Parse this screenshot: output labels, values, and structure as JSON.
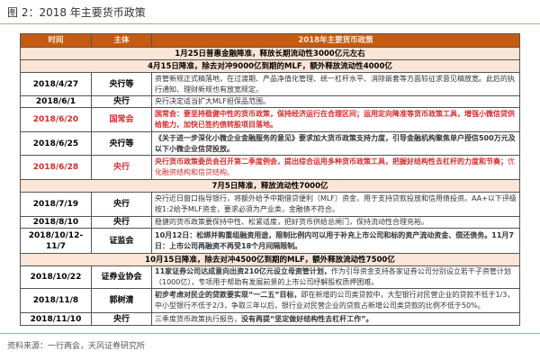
{
  "title": "图 2：2018 年主要货币政策",
  "headers": [
    "时间",
    "主体",
    "2018年主要货币政策"
  ],
  "rows": [
    {
      "span": "1月25日普惠金融降准，释放长期流动性3000亿元左右"
    },
    {
      "span": "4月15日降准，除去对冲9000亿到期的MLF，额外释放流动性4000亿"
    },
    {
      "date": "2018/4/27",
      "subject": "央行等",
      "parts": [
        {
          "t": "资管新规正式稿落地，在过渡期、产品净值化管理、统一杠杆水平、消除嵌套等方面较征求意见稿放宽。此后的执行通知、理财新规也有放宽规定。"
        }
      ],
      "h": 26
    },
    {
      "date": "2018/6/1",
      "subject": "央行",
      "parts": [
        {
          "t": "央行决定适当扩大MLF担保品范围。"
        }
      ],
      "h": 13
    },
    {
      "date": "2018/6/20",
      "subject": "国常会",
      "red": true,
      "parts": [
        {
          "t": "国常会：要坚持稳健中性的货币政策，保持经济运行在合理区间；运用定向降准等货币政策工具，增强小微信贷供给能力，加快已签约债转股项目落地。",
          "b": true
        }
      ],
      "h": 27
    },
    {
      "date": "2018/6/25",
      "subject": "央行等",
      "parts": [
        {
          "t": "《关于进一步深化小微企业金融服务的意见》要求加大货币政策支持力度，引导金融机构聚焦单户授信500万元及以下小微企业信贷投放。",
          "b": true
        }
      ],
      "h": 26
    },
    {
      "date": "2018/6/28",
      "subject": "央行",
      "red": true,
      "parts": [
        {
          "t": "央行货币政策委员会召开第二季度例会，提出综合运用多种货币政策工具，把握好结构性去杠杆的力度和节奏；",
          "b": true
        },
        {
          "t": "优化融资结构和信贷结构。"
        }
      ],
      "h": 27
    },
    {
      "span": "7月5日降准，释放流动性7000亿"
    },
    {
      "date": "2018/7/19",
      "subject": "央行",
      "parts": [
        {
          "t": "央行近日窗口指导银行，将额外给予中期借贷便利（MLF）资金，用于支持贷款投放和信用债投资。AA+以下评级按1:2给予MLF资金，要求必须为产业类，金融债不符合。"
        }
      ],
      "h": 27
    },
    {
      "date": "2018/8/10",
      "subject": "央行",
      "parts": [
        {
          "t": "稳健的货币政策要保持中性、松紧适度，把好货币供给总闸门，保持流动性合理充裕。"
        }
      ],
      "h": 13
    },
    {
      "date": "2018/10/12-11/7",
      "subject": "证监会",
      "parts": [
        {
          "t": "10月12日：松绑并购重组融资用途，限制比例内可以用于补充上市公司和标的资产流动资金、偿还债务。11月7日：上市公司再融资不再受18个月间隔限制。",
          "b": true
        }
      ],
      "h": 28
    },
    {
      "span": "10月15日降准，除去对冲4500亿到期的MLF，额外释放流动性7500亿"
    },
    {
      "date": "2018/10/22",
      "subject": "证券业协会",
      "parts": [
        {
          "t": "11家证券公司达成意向出资210亿元设立母资管计划，",
          "b": true
        },
        {
          "t": "作为引导资金支持各家证券公司分别设立若干子资管计划（1000亿），专项用于帮助有发展前景的上市公司纾解股权质押困难。"
        }
      ],
      "h": 24
    },
    {
      "date": "2018/11/8",
      "subject": "郭树清",
      "parts": [
        {
          "t": "初步考虑对民企的贷款要实现“一二五”目标，",
          "b": true
        },
        {
          "t": "即在新增的公司类贷款中，大型银行对民营企业的贷款不低于1/3，中小型银行不低于2/3，争取三年以后，银行业对民营企业的贷款占新增公司类贷款的比例不低于50%。"
        }
      ],
      "h": 27
    },
    {
      "date": "2018/11/10",
      "subject": "央行",
      "parts": [
        {
          "t": "三季度货币政策执行报告，"
        },
        {
          "t": "没有再提“坚定做好结构性去杠杆工作”。",
          "b": true
        }
      ],
      "h": 14
    }
  ],
  "source": "资料来源：一行两会，天风证券研究所",
  "colors": {
    "header": "#c55a11",
    "span_row": "#fbe5d6",
    "highlight_text": "#d52b2b",
    "rule": "#c8a56a"
  }
}
